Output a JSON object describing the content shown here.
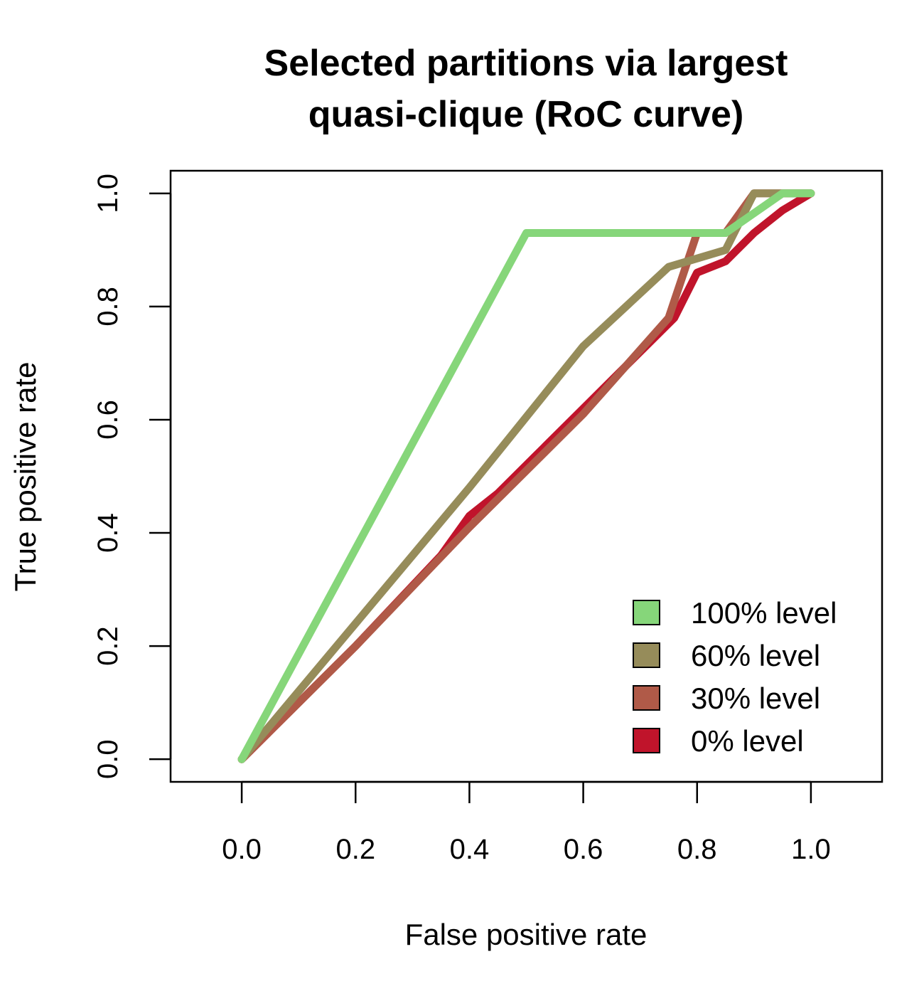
{
  "chart_data": {
    "type": "line",
    "title_lines": [
      "Selected partitions via largest",
      "quasi-clique (RoC curve)"
    ],
    "xlabel": "False positive rate",
    "ylabel": "True positive rate",
    "xlim": [
      -0.125,
      1.125
    ],
    "ylim": [
      -0.04,
      1.04
    ],
    "xticks": [
      0.0,
      0.2,
      0.4,
      0.6,
      0.8,
      1.0
    ],
    "xtick_labels": [
      "0.0",
      "0.2",
      "0.4",
      "0.6",
      "0.8",
      "1.0"
    ],
    "yticks": [
      0.0,
      0.2,
      0.4,
      0.6,
      0.8,
      1.0
    ],
    "ytick_labels": [
      "0.0",
      "0.2",
      "0.4",
      "0.6",
      "0.8",
      "1.0"
    ],
    "legend_position": "bottom-right",
    "series": [
      {
        "name": "0% level",
        "color": "#c0142b",
        "points": [
          [
            0,
            0
          ],
          [
            0.1,
            0.1
          ],
          [
            0.2,
            0.2
          ],
          [
            0.35,
            0.36
          ],
          [
            0.4,
            0.43
          ],
          [
            0.45,
            0.47
          ],
          [
            0.6,
            0.62
          ],
          [
            0.76,
            0.78
          ],
          [
            0.8,
            0.86
          ],
          [
            0.85,
            0.88
          ],
          [
            0.9,
            0.93
          ],
          [
            0.95,
            0.97
          ],
          [
            1,
            1
          ]
        ]
      },
      {
        "name": "30% level",
        "color": "#b05a48",
        "points": [
          [
            0,
            0
          ],
          [
            0.2,
            0.2
          ],
          [
            0.4,
            0.41
          ],
          [
            0.6,
            0.61
          ],
          [
            0.75,
            0.78
          ],
          [
            0.8,
            0.93
          ],
          [
            0.85,
            0.93
          ],
          [
            0.9,
            1.0
          ],
          [
            0.95,
            1.0
          ],
          [
            1,
            1
          ]
        ]
      },
      {
        "name": "60% level",
        "color": "#968c5a",
        "points": [
          [
            0,
            0
          ],
          [
            0.2,
            0.24
          ],
          [
            0.4,
            0.48
          ],
          [
            0.6,
            0.73
          ],
          [
            0.75,
            0.87
          ],
          [
            0.85,
            0.9
          ],
          [
            0.9,
            1.0
          ],
          [
            1,
            1
          ]
        ]
      },
      {
        "name": "100% level",
        "color": "#86d67a",
        "points": [
          [
            0,
            0
          ],
          [
            0.5,
            0.93
          ],
          [
            0.85,
            0.93
          ],
          [
            0.95,
            1.0
          ],
          [
            1,
            1
          ]
        ]
      }
    ],
    "legend_order": [
      "100% level",
      "60% level",
      "30% level",
      "0% level"
    ]
  }
}
